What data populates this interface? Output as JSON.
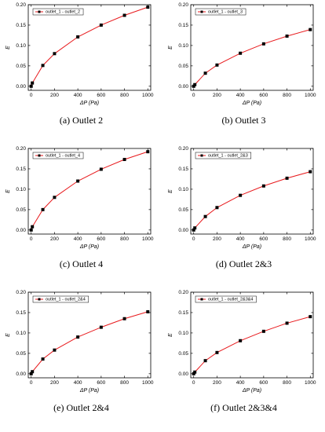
{
  "chart_data": [
    {
      "type": "line",
      "caption": "(a) Outlet 2",
      "xlabel": "ΔP (Pa)",
      "ylabel": "E",
      "xlim": [
        -25,
        1025
      ],
      "ylim": [
        -0.01,
        0.2
      ],
      "xticks": [
        0,
        200,
        400,
        600,
        800,
        1000
      ],
      "yticks": [
        0.0,
        0.05,
        0.1,
        0.15,
        0.2
      ],
      "legend_position": "top-left",
      "series": [
        {
          "name": "outlet_1 - outlet_2",
          "x": [
            0,
            10,
            100,
            200,
            400,
            600,
            800,
            1000
          ],
          "y": [
            0.0,
            0.008,
            0.051,
            0.08,
            0.121,
            0.15,
            0.174,
            0.194
          ],
          "line_color": "#e8191c",
          "marker_color": "#000000"
        }
      ]
    },
    {
      "type": "line",
      "caption": "(b) Outlet 3",
      "xlabel": "ΔP (Pa)",
      "ylabel": "E",
      "xlim": [
        -25,
        1025
      ],
      "ylim": [
        -0.01,
        0.2
      ],
      "xticks": [
        0,
        200,
        400,
        600,
        800,
        1000
      ],
      "yticks": [
        0.0,
        0.05,
        0.1,
        0.15,
        0.2
      ],
      "legend_position": "top-left",
      "series": [
        {
          "name": "outlet_1 - outlet_3",
          "x": [
            0,
            10,
            100,
            200,
            400,
            600,
            800,
            1000
          ],
          "y": [
            0.0,
            0.004,
            0.032,
            0.052,
            0.081,
            0.104,
            0.123,
            0.139
          ],
          "line_color": "#e8191c",
          "marker_color": "#000000"
        }
      ]
    },
    {
      "type": "line",
      "caption": "(c) Outlet 4",
      "xlabel": "ΔP (Pa)",
      "ylabel": "E",
      "xlim": [
        -25,
        1025
      ],
      "ylim": [
        -0.01,
        0.2
      ],
      "xticks": [
        0,
        200,
        400,
        600,
        800,
        1000
      ],
      "yticks": [
        0.0,
        0.05,
        0.1,
        0.15,
        0.2
      ],
      "legend_position": "top-left",
      "series": [
        {
          "name": "outlet_1 - outlet_4",
          "x": [
            0,
            10,
            100,
            200,
            400,
            600,
            800,
            1000
          ],
          "y": [
            0.0,
            0.008,
            0.05,
            0.08,
            0.12,
            0.149,
            0.173,
            0.192
          ],
          "line_color": "#e8191c",
          "marker_color": "#000000"
        }
      ]
    },
    {
      "type": "line",
      "caption": "(d) Outlet 2&3",
      "xlabel": "ΔP (Pa)",
      "ylabel": "E",
      "xlim": [
        -25,
        1025
      ],
      "ylim": [
        -0.01,
        0.2
      ],
      "xticks": [
        0,
        200,
        400,
        600,
        800,
        1000
      ],
      "yticks": [
        0.0,
        0.05,
        0.1,
        0.15,
        0.2
      ],
      "legend_position": "top-left",
      "series": [
        {
          "name": "outlet_1 - outlet_2&3",
          "x": [
            0,
            10,
            100,
            200,
            400,
            600,
            800,
            1000
          ],
          "y": [
            0.0,
            0.005,
            0.033,
            0.055,
            0.085,
            0.108,
            0.127,
            0.143
          ],
          "line_color": "#e8191c",
          "marker_color": "#000000"
        }
      ]
    },
    {
      "type": "line",
      "caption": "(e) Outlet 2&4",
      "xlabel": "ΔP (Pa)",
      "ylabel": "E",
      "xlim": [
        -25,
        1025
      ],
      "ylim": [
        -0.01,
        0.2
      ],
      "xticks": [
        0,
        200,
        400,
        600,
        800,
        1000
      ],
      "yticks": [
        0.0,
        0.05,
        0.1,
        0.15,
        0.2
      ],
      "legend_position": "top-left",
      "series": [
        {
          "name": "outlet_1 - outlet_2&4",
          "x": [
            0,
            10,
            100,
            200,
            400,
            600,
            800,
            1000
          ],
          "y": [
            0.0,
            0.005,
            0.036,
            0.058,
            0.09,
            0.114,
            0.135,
            0.152
          ],
          "line_color": "#e8191c",
          "marker_color": "#000000"
        }
      ]
    },
    {
      "type": "line",
      "caption": "(f) Outlet 2&3&4",
      "xlabel": "ΔP (Pa)",
      "ylabel": "E",
      "xlim": [
        -25,
        1025
      ],
      "ylim": [
        -0.01,
        0.2
      ],
      "xticks": [
        0,
        200,
        400,
        600,
        800,
        1000
      ],
      "yticks": [
        0.0,
        0.05,
        0.1,
        0.15,
        0.2
      ],
      "legend_position": "top-left",
      "series": [
        {
          "name": "outlet_1 - outlet_2&3&4",
          "x": [
            0,
            10,
            100,
            200,
            400,
            600,
            800,
            1000
          ],
          "y": [
            0.0,
            0.004,
            0.032,
            0.052,
            0.081,
            0.104,
            0.124,
            0.14
          ],
          "line_color": "#e8191c",
          "marker_color": "#000000"
        }
      ]
    }
  ]
}
